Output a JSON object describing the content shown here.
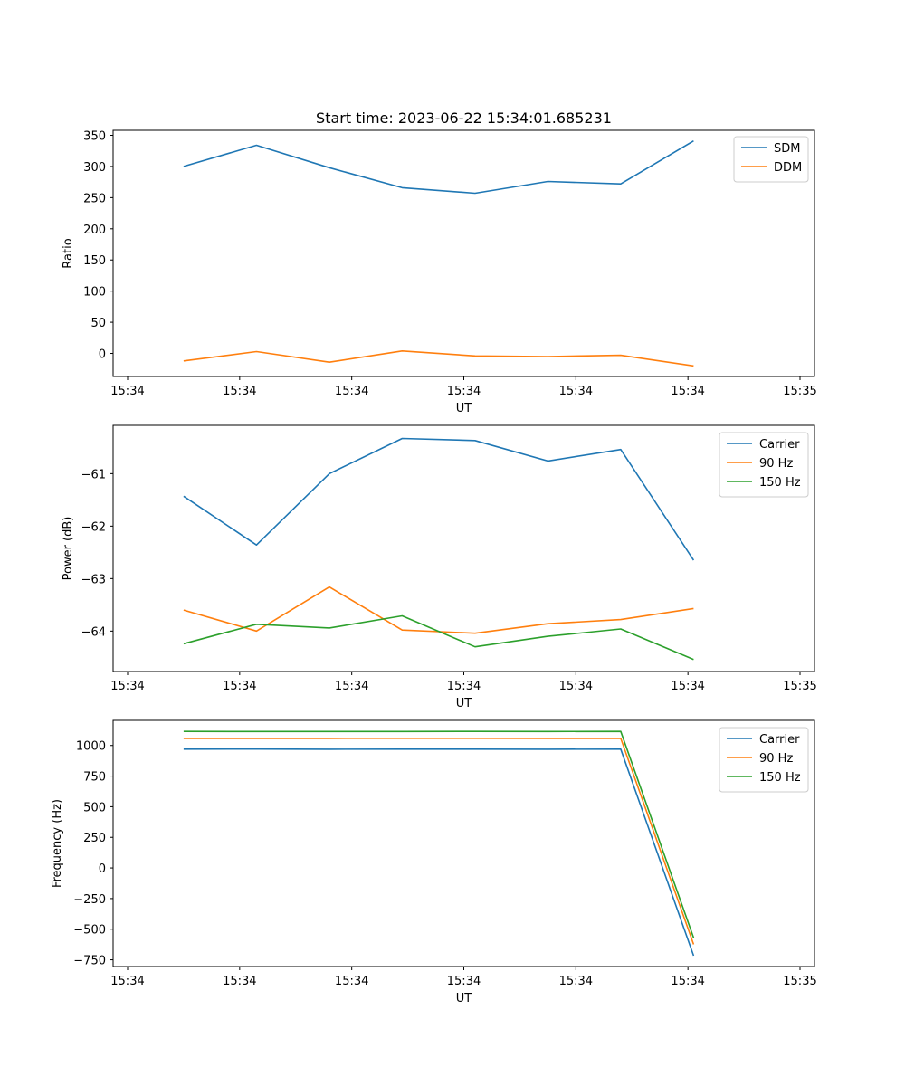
{
  "title": "Start time: 2023-06-22 15:34:01.685231",
  "chart_data": [
    {
      "type": "line",
      "title": "Start time: 2023-06-22 15:34:01.685231",
      "xlabel": "UT",
      "ylabel": "Ratio",
      "x_tick_labels": [
        "15:34",
        "15:34",
        "15:34",
        "15:34",
        "15:34",
        "15:34",
        "15:35"
      ],
      "xlim": [
        0,
        6
      ],
      "x": [
        0.5,
        1.15,
        1.8,
        2.45,
        3.1,
        3.75,
        4.4,
        5.05
      ],
      "ylim": [
        -37,
        358
      ],
      "yticks": [
        0,
        50,
        100,
        150,
        200,
        250,
        300,
        350
      ],
      "legend_position": "upper right",
      "series": [
        {
          "name": "SDM",
          "color": "#1f77b4",
          "values": [
            300,
            334,
            298,
            266,
            257,
            276,
            272,
            341
          ]
        },
        {
          "name": "DDM",
          "color": "#ff7f0e",
          "values": [
            -12,
            3,
            -14,
            4,
            -4,
            -5,
            -3,
            -20
          ]
        }
      ]
    },
    {
      "type": "line",
      "xlabel": "UT",
      "ylabel": "Power (dB)",
      "x_tick_labels": [
        "15:34",
        "15:34",
        "15:34",
        "15:34",
        "15:34",
        "15:34",
        "15:35"
      ],
      "xlim": [
        0,
        6
      ],
      "x": [
        0.5,
        1.15,
        1.8,
        2.45,
        3.1,
        3.75,
        4.4,
        5.05
      ],
      "ylim": [
        -64.77,
        -60.08
      ],
      "yticks": [
        -64,
        -63,
        -62,
        -61
      ],
      "legend_position": "upper right",
      "series": [
        {
          "name": "Carrier",
          "color": "#1f77b4",
          "values": [
            -61.43,
            -62.36,
            -61.0,
            -60.33,
            -60.37,
            -60.76,
            -60.54,
            -62.65
          ]
        },
        {
          "name": "90 Hz",
          "color": "#ff7f0e",
          "values": [
            -63.6,
            -64.0,
            -63.16,
            -63.98,
            -64.04,
            -63.86,
            -63.78,
            -63.57
          ]
        },
        {
          "name": "150 Hz",
          "color": "#2ca02c",
          "values": [
            -64.24,
            -63.87,
            -63.94,
            -63.71,
            -64.3,
            -64.1,
            -63.96,
            -64.54
          ]
        }
      ]
    },
    {
      "type": "line",
      "xlabel": "UT",
      "ylabel": "Frequency (Hz)",
      "x_tick_labels": [
        "15:34",
        "15:34",
        "15:34",
        "15:34",
        "15:34",
        "15:34",
        "15:35"
      ],
      "xlim": [
        0,
        6
      ],
      "x": [
        0.5,
        1.15,
        1.8,
        2.45,
        3.1,
        3.75,
        4.4,
        5.05
      ],
      "ylim": [
        -805,
        1205
      ],
      "yticks": [
        -750,
        -500,
        -250,
        0,
        250,
        500,
        750,
        1000
      ],
      "legend_position": "upper right",
      "series": [
        {
          "name": "Carrier",
          "color": "#1f77b4",
          "values": [
            970,
            971,
            969,
            970,
            970,
            969,
            970,
            -716
          ]
        },
        {
          "name": "90 Hz",
          "color": "#ff7f0e",
          "values": [
            1058,
            1058,
            1058,
            1059,
            1059,
            1058,
            1058,
            -624
          ]
        },
        {
          "name": "150 Hz",
          "color": "#2ca02c",
          "values": [
            1115,
            1114,
            1114,
            1114,
            1115,
            1114,
            1115,
            -570
          ]
        }
      ]
    }
  ]
}
